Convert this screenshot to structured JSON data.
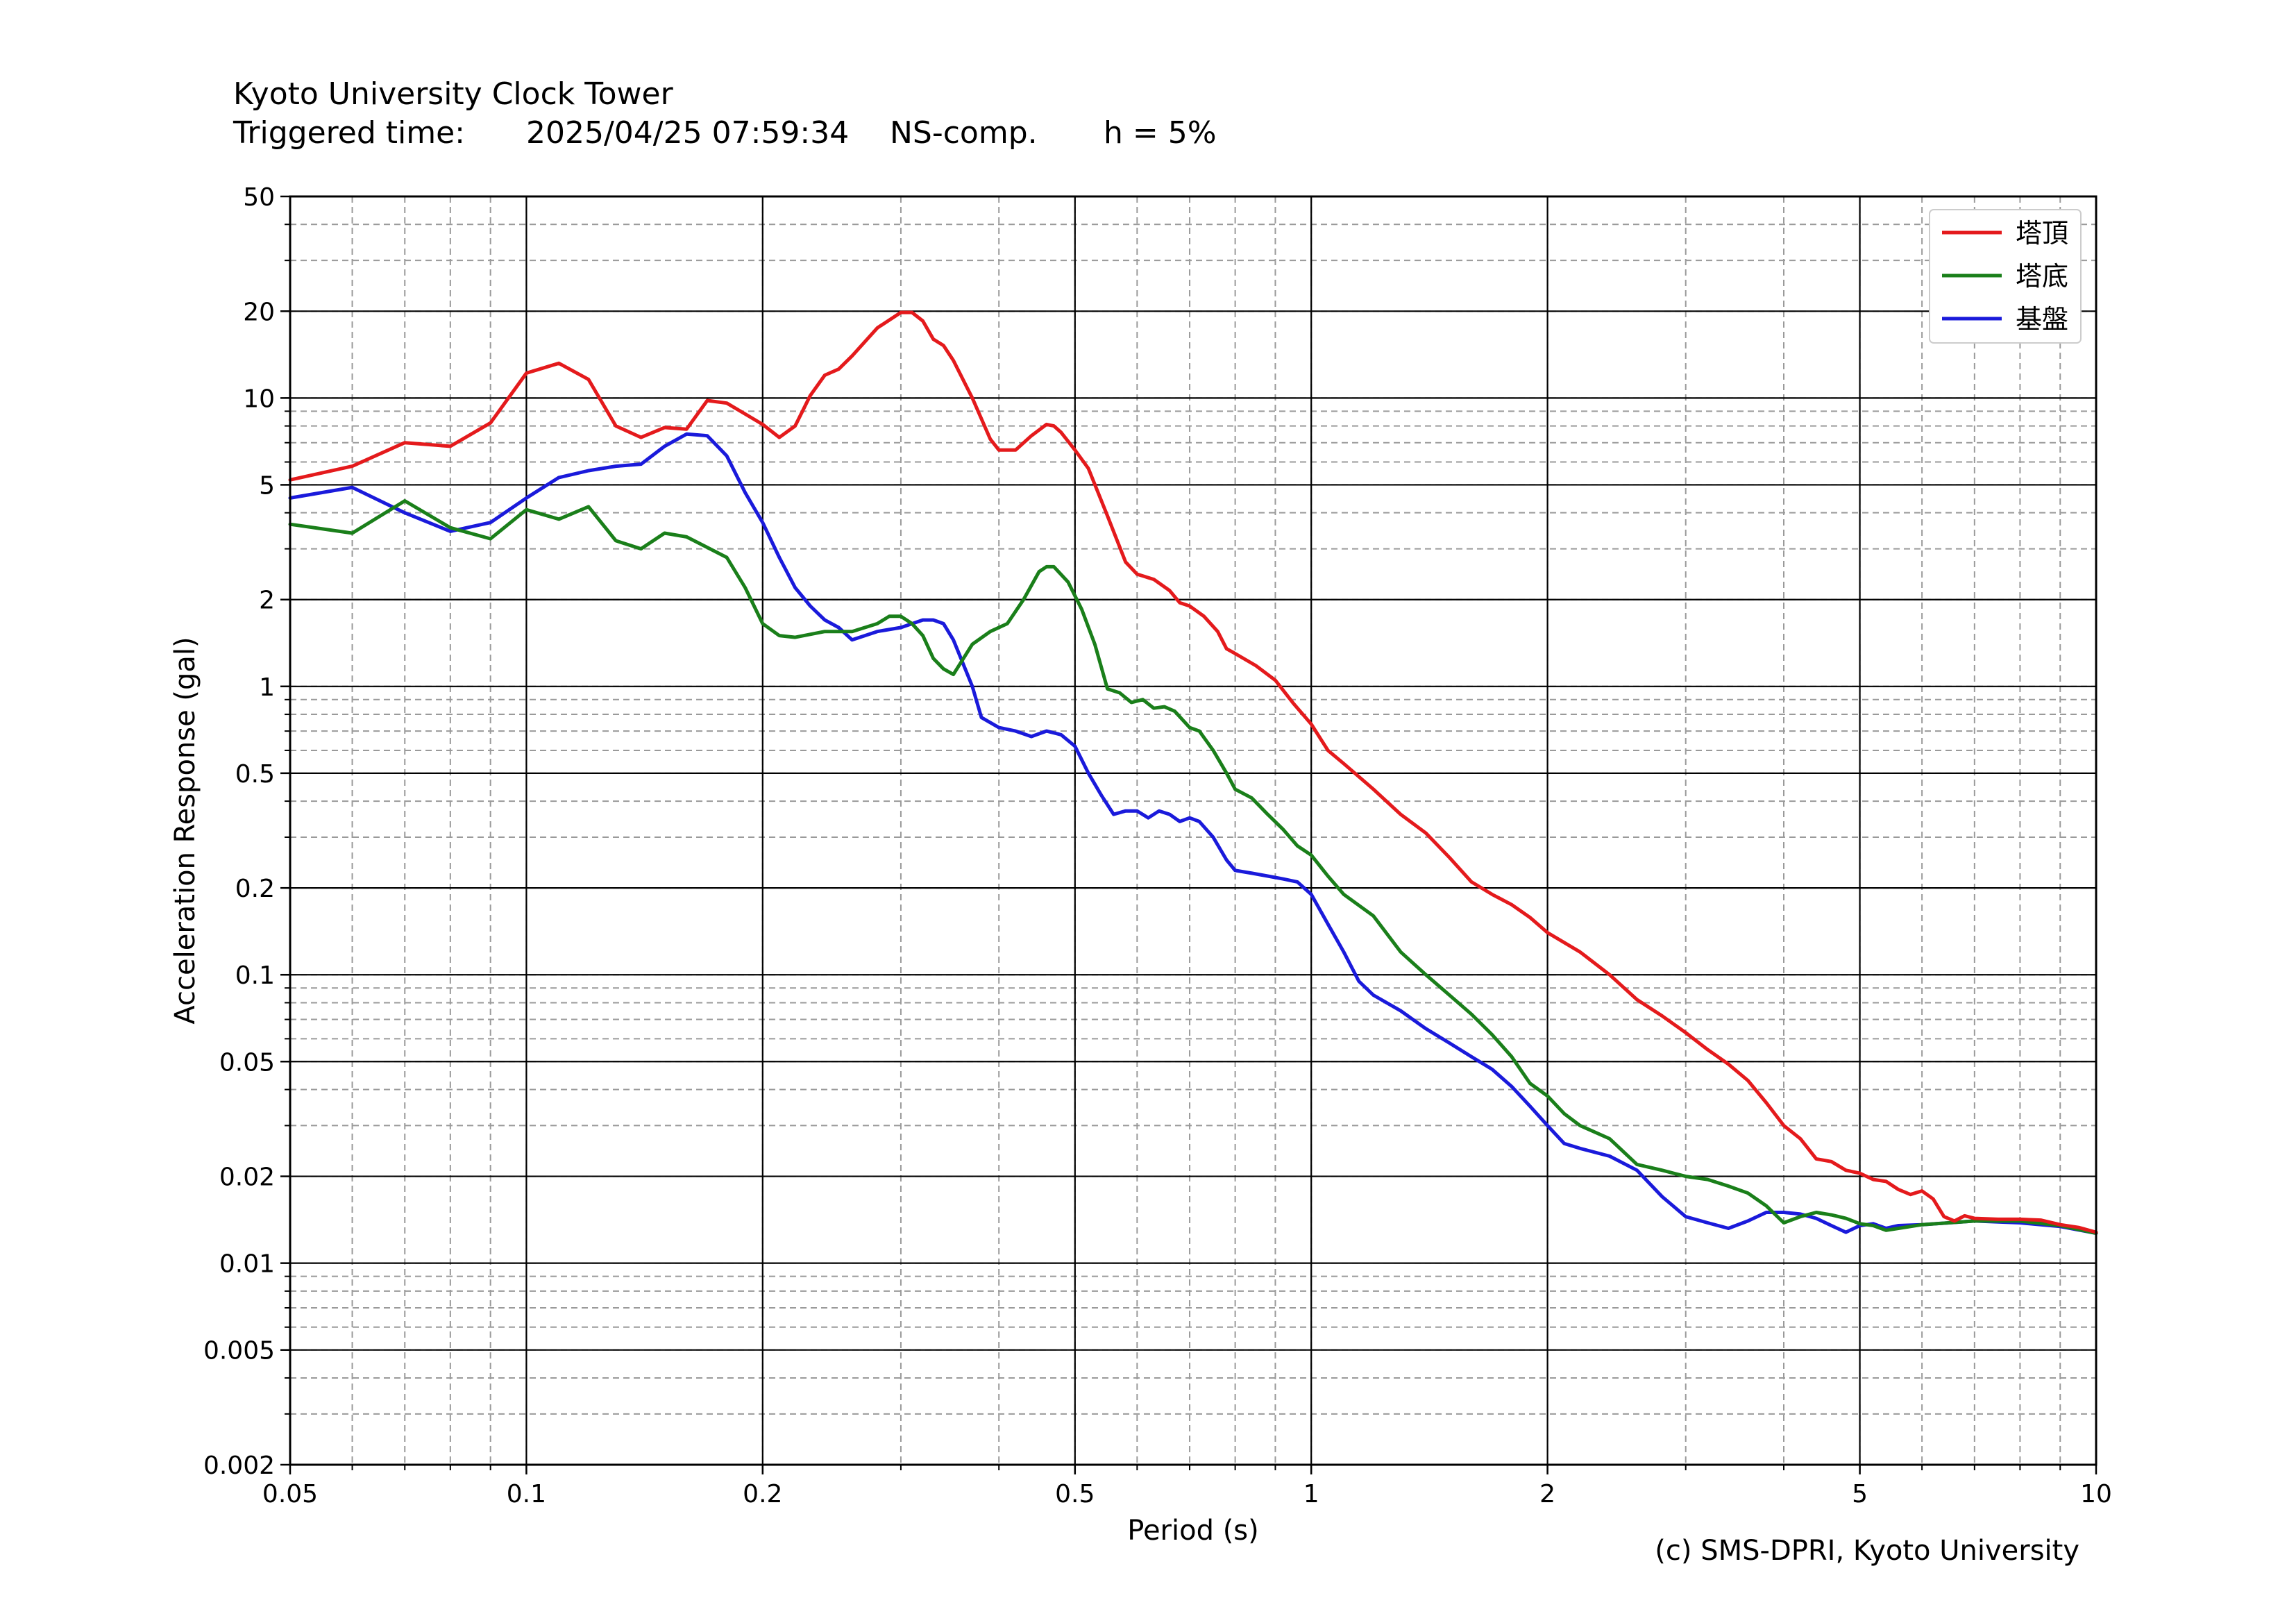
{
  "header": {
    "station": "Kyoto University Clock Tower",
    "triggered_label": "Triggered time:",
    "triggered_value": "2025/04/25 07:59:34",
    "component": "NS-comp.",
    "damping": "h = 5%"
  },
  "credit": "(c) SMS-DPRI, Kyoto University",
  "colors": {
    "tower_top": "#e41a1c",
    "tower_bottom": "#1a7f1a",
    "base": "#1a1adb"
  },
  "chart_data": {
    "type": "line",
    "title": "",
    "xlabel": "Period (s)",
    "ylabel": "Acceleration Response (gal)",
    "xscale": "log",
    "yscale": "log",
    "xlim": [
      0.05,
      10
    ],
    "ylim": [
      0.002,
      50
    ],
    "grid": true,
    "legend": "top-right",
    "x_ticks": [
      {
        "v": 0.05,
        "label": "0.05"
      },
      {
        "v": 0.1,
        "label": "0.1"
      },
      {
        "v": 0.2,
        "label": "0.2"
      },
      {
        "v": 0.5,
        "label": "0.5"
      },
      {
        "v": 1,
        "label": "1"
      },
      {
        "v": 2,
        "label": "2"
      },
      {
        "v": 5,
        "label": "5"
      },
      {
        "v": 10,
        "label": "10"
      }
    ],
    "y_ticks": [
      {
        "v": 0.002,
        "label": "0.002"
      },
      {
        "v": 0.005,
        "label": "0.005"
      },
      {
        "v": 0.01,
        "label": "0.01"
      },
      {
        "v": 0.02,
        "label": "0.02"
      },
      {
        "v": 0.05,
        "label": "0.05"
      },
      {
        "v": 0.1,
        "label": "0.1"
      },
      {
        "v": 0.2,
        "label": "0.2"
      },
      {
        "v": 0.5,
        "label": "0.5"
      },
      {
        "v": 1,
        "label": "1"
      },
      {
        "v": 2,
        "label": "2"
      },
      {
        "v": 5,
        "label": "5"
      },
      {
        "v": 10,
        "label": "10"
      },
      {
        "v": 20,
        "label": "20"
      },
      {
        "v": 50,
        "label": "50"
      }
    ],
    "series": [
      {
        "name": "塔頂",
        "color": "#e41a1c",
        "points": [
          [
            0.05,
            5.2
          ],
          [
            0.06,
            5.8
          ],
          [
            0.07,
            7.0
          ],
          [
            0.08,
            6.8
          ],
          [
            0.09,
            8.2
          ],
          [
            0.1,
            12.2
          ],
          [
            0.11,
            13.2
          ],
          [
            0.12,
            11.6
          ],
          [
            0.13,
            8.0
          ],
          [
            0.14,
            7.3
          ],
          [
            0.15,
            7.9
          ],
          [
            0.16,
            7.8
          ],
          [
            0.17,
            9.8
          ],
          [
            0.18,
            9.6
          ],
          [
            0.19,
            8.8
          ],
          [
            0.2,
            8.1
          ],
          [
            0.21,
            7.3
          ],
          [
            0.22,
            8.0
          ],
          [
            0.23,
            10.2
          ],
          [
            0.24,
            12.0
          ],
          [
            0.25,
            12.6
          ],
          [
            0.26,
            14.0
          ],
          [
            0.28,
            17.5
          ],
          [
            0.3,
            19.8
          ],
          [
            0.31,
            19.8
          ],
          [
            0.32,
            18.5
          ],
          [
            0.33,
            16.0
          ],
          [
            0.34,
            15.2
          ],
          [
            0.35,
            13.5
          ],
          [
            0.37,
            10.0
          ],
          [
            0.39,
            7.2
          ],
          [
            0.4,
            6.6
          ],
          [
            0.42,
            6.6
          ],
          [
            0.44,
            7.4
          ],
          [
            0.46,
            8.1
          ],
          [
            0.47,
            8.0
          ],
          [
            0.48,
            7.6
          ],
          [
            0.5,
            6.6
          ],
          [
            0.52,
            5.7
          ],
          [
            0.55,
            3.9
          ],
          [
            0.58,
            2.7
          ],
          [
            0.6,
            2.45
          ],
          [
            0.63,
            2.35
          ],
          [
            0.66,
            2.15
          ],
          [
            0.68,
            1.95
          ],
          [
            0.7,
            1.9
          ],
          [
            0.73,
            1.75
          ],
          [
            0.76,
            1.55
          ],
          [
            0.78,
            1.35
          ],
          [
            0.8,
            1.3
          ],
          [
            0.85,
            1.18
          ],
          [
            0.9,
            1.05
          ],
          [
            0.95,
            0.87
          ],
          [
            1.0,
            0.74
          ],
          [
            1.05,
            0.6
          ],
          [
            1.1,
            0.54
          ],
          [
            1.2,
            0.44
          ],
          [
            1.3,
            0.36
          ],
          [
            1.4,
            0.31
          ],
          [
            1.5,
            0.255
          ],
          [
            1.6,
            0.21
          ],
          [
            1.7,
            0.19
          ],
          [
            1.8,
            0.175
          ],
          [
            1.9,
            0.158
          ],
          [
            2.0,
            0.14
          ],
          [
            2.2,
            0.12
          ],
          [
            2.4,
            0.1
          ],
          [
            2.6,
            0.082
          ],
          [
            2.8,
            0.072
          ],
          [
            3.0,
            0.063
          ],
          [
            3.2,
            0.055
          ],
          [
            3.4,
            0.049
          ],
          [
            3.6,
            0.043
          ],
          [
            3.8,
            0.036
          ],
          [
            4.0,
            0.03
          ],
          [
            4.2,
            0.027
          ],
          [
            4.4,
            0.023
          ],
          [
            4.6,
            0.0225
          ],
          [
            4.8,
            0.021
          ],
          [
            5.0,
            0.0205
          ],
          [
            5.2,
            0.0195
          ],
          [
            5.4,
            0.0192
          ],
          [
            5.6,
            0.018
          ],
          [
            5.8,
            0.0173
          ],
          [
            6.0,
            0.0178
          ],
          [
            6.2,
            0.0167
          ],
          [
            6.4,
            0.0145
          ],
          [
            6.6,
            0.014
          ],
          [
            6.8,
            0.0146
          ],
          [
            7.0,
            0.0143
          ],
          [
            7.5,
            0.0142
          ],
          [
            8.0,
            0.0142
          ],
          [
            8.5,
            0.0141
          ],
          [
            9.0,
            0.0136
          ],
          [
            9.5,
            0.0133
          ],
          [
            10.0,
            0.0128
          ]
        ]
      },
      {
        "name": "塔底",
        "color": "#1a7f1a",
        "points": [
          [
            0.05,
            3.65
          ],
          [
            0.06,
            3.4
          ],
          [
            0.07,
            4.4
          ],
          [
            0.08,
            3.55
          ],
          [
            0.09,
            3.25
          ],
          [
            0.1,
            4.1
          ],
          [
            0.11,
            3.8
          ],
          [
            0.12,
            4.2
          ],
          [
            0.13,
            3.2
          ],
          [
            0.14,
            3.0
          ],
          [
            0.15,
            3.4
          ],
          [
            0.16,
            3.3
          ],
          [
            0.18,
            2.8
          ],
          [
            0.19,
            2.2
          ],
          [
            0.2,
            1.65
          ],
          [
            0.21,
            1.5
          ],
          [
            0.22,
            1.48
          ],
          [
            0.24,
            1.55
          ],
          [
            0.26,
            1.55
          ],
          [
            0.28,
            1.65
          ],
          [
            0.29,
            1.75
          ],
          [
            0.3,
            1.75
          ],
          [
            0.31,
            1.65
          ],
          [
            0.32,
            1.5
          ],
          [
            0.33,
            1.25
          ],
          [
            0.34,
            1.15
          ],
          [
            0.35,
            1.1
          ],
          [
            0.37,
            1.4
          ],
          [
            0.39,
            1.55
          ],
          [
            0.41,
            1.65
          ],
          [
            0.43,
            2.0
          ],
          [
            0.45,
            2.5
          ],
          [
            0.46,
            2.6
          ],
          [
            0.47,
            2.6
          ],
          [
            0.49,
            2.3
          ],
          [
            0.51,
            1.85
          ],
          [
            0.53,
            1.4
          ],
          [
            0.55,
            0.98
          ],
          [
            0.57,
            0.95
          ],
          [
            0.59,
            0.88
          ],
          [
            0.61,
            0.9
          ],
          [
            0.63,
            0.84
          ],
          [
            0.65,
            0.85
          ],
          [
            0.67,
            0.82
          ],
          [
            0.7,
            0.72
          ],
          [
            0.72,
            0.7
          ],
          [
            0.75,
            0.6
          ],
          [
            0.78,
            0.5
          ],
          [
            0.8,
            0.44
          ],
          [
            0.84,
            0.41
          ],
          [
            0.88,
            0.36
          ],
          [
            0.92,
            0.32
          ],
          [
            0.96,
            0.28
          ],
          [
            1.0,
            0.26
          ],
          [
            1.05,
            0.22
          ],
          [
            1.1,
            0.19
          ],
          [
            1.2,
            0.16
          ],
          [
            1.3,
            0.12
          ],
          [
            1.4,
            0.1
          ],
          [
            1.5,
            0.085
          ],
          [
            1.6,
            0.073
          ],
          [
            1.7,
            0.062
          ],
          [
            1.8,
            0.052
          ],
          [
            1.9,
            0.042
          ],
          [
            2.0,
            0.038
          ],
          [
            2.1,
            0.033
          ],
          [
            2.2,
            0.03
          ],
          [
            2.4,
            0.027
          ],
          [
            2.6,
            0.022
          ],
          [
            2.8,
            0.021
          ],
          [
            3.0,
            0.02
          ],
          [
            3.2,
            0.0195
          ],
          [
            3.4,
            0.0185
          ],
          [
            3.6,
            0.0175
          ],
          [
            3.8,
            0.0158
          ],
          [
            4.0,
            0.0138
          ],
          [
            4.2,
            0.0145
          ],
          [
            4.4,
            0.015
          ],
          [
            4.6,
            0.0147
          ],
          [
            4.8,
            0.0143
          ],
          [
            5.0,
            0.0137
          ],
          [
            5.2,
            0.0135
          ],
          [
            5.4,
            0.013
          ],
          [
            5.6,
            0.0132
          ],
          [
            6.0,
            0.0136
          ],
          [
            7.0,
            0.014
          ],
          [
            8.0,
            0.014
          ],
          [
            9.0,
            0.0135
          ],
          [
            10.0,
            0.0127
          ]
        ]
      },
      {
        "name": "基盤",
        "color": "#1a1adb",
        "points": [
          [
            0.05,
            4.5
          ],
          [
            0.06,
            4.9
          ],
          [
            0.07,
            4.0
          ],
          [
            0.08,
            3.45
          ],
          [
            0.09,
            3.7
          ],
          [
            0.1,
            4.5
          ],
          [
            0.11,
            5.3
          ],
          [
            0.12,
            5.6
          ],
          [
            0.13,
            5.8
          ],
          [
            0.14,
            5.9
          ],
          [
            0.15,
            6.8
          ],
          [
            0.16,
            7.5
          ],
          [
            0.17,
            7.4
          ],
          [
            0.18,
            6.3
          ],
          [
            0.19,
            4.7
          ],
          [
            0.2,
            3.7
          ],
          [
            0.21,
            2.8
          ],
          [
            0.22,
            2.2
          ],
          [
            0.23,
            1.9
          ],
          [
            0.24,
            1.7
          ],
          [
            0.25,
            1.6
          ],
          [
            0.26,
            1.45
          ],
          [
            0.27,
            1.5
          ],
          [
            0.28,
            1.55
          ],
          [
            0.3,
            1.6
          ],
          [
            0.32,
            1.7
          ],
          [
            0.33,
            1.7
          ],
          [
            0.34,
            1.65
          ],
          [
            0.35,
            1.45
          ],
          [
            0.37,
            1.0
          ],
          [
            0.38,
            0.78
          ],
          [
            0.4,
            0.72
          ],
          [
            0.42,
            0.7
          ],
          [
            0.44,
            0.67
          ],
          [
            0.46,
            0.7
          ],
          [
            0.48,
            0.68
          ],
          [
            0.5,
            0.62
          ],
          [
            0.52,
            0.5
          ],
          [
            0.54,
            0.42
          ],
          [
            0.56,
            0.36
          ],
          [
            0.58,
            0.37
          ],
          [
            0.6,
            0.37
          ],
          [
            0.62,
            0.35
          ],
          [
            0.64,
            0.37
          ],
          [
            0.66,
            0.36
          ],
          [
            0.68,
            0.34
          ],
          [
            0.7,
            0.35
          ],
          [
            0.72,
            0.34
          ],
          [
            0.75,
            0.3
          ],
          [
            0.78,
            0.25
          ],
          [
            0.8,
            0.23
          ],
          [
            0.84,
            0.225
          ],
          [
            0.88,
            0.22
          ],
          [
            0.92,
            0.215
          ],
          [
            0.96,
            0.21
          ],
          [
            1.0,
            0.19
          ],
          [
            1.05,
            0.15
          ],
          [
            1.1,
            0.12
          ],
          [
            1.15,
            0.095
          ],
          [
            1.2,
            0.085
          ],
          [
            1.3,
            0.075
          ],
          [
            1.4,
            0.065
          ],
          [
            1.5,
            0.058
          ],
          [
            1.6,
            0.052
          ],
          [
            1.7,
            0.047
          ],
          [
            1.8,
            0.041
          ],
          [
            1.9,
            0.035
          ],
          [
            2.0,
            0.03
          ],
          [
            2.1,
            0.026
          ],
          [
            2.2,
            0.025
          ],
          [
            2.4,
            0.0235
          ],
          [
            2.6,
            0.021
          ],
          [
            2.8,
            0.017
          ],
          [
            3.0,
            0.0145
          ],
          [
            3.2,
            0.0138
          ],
          [
            3.4,
            0.0132
          ],
          [
            3.6,
            0.014
          ],
          [
            3.8,
            0.015
          ],
          [
            4.0,
            0.015
          ],
          [
            4.2,
            0.0148
          ],
          [
            4.4,
            0.0143
          ],
          [
            4.6,
            0.0135
          ],
          [
            4.8,
            0.0128
          ],
          [
            5.0,
            0.0135
          ],
          [
            5.2,
            0.0137
          ],
          [
            5.4,
            0.0132
          ],
          [
            5.6,
            0.0135
          ],
          [
            6.0,
            0.0136
          ],
          [
            7.0,
            0.014
          ],
          [
            8.0,
            0.0138
          ],
          [
            9.0,
            0.0134
          ],
          [
            10.0,
            0.0127
          ]
        ]
      }
    ]
  }
}
